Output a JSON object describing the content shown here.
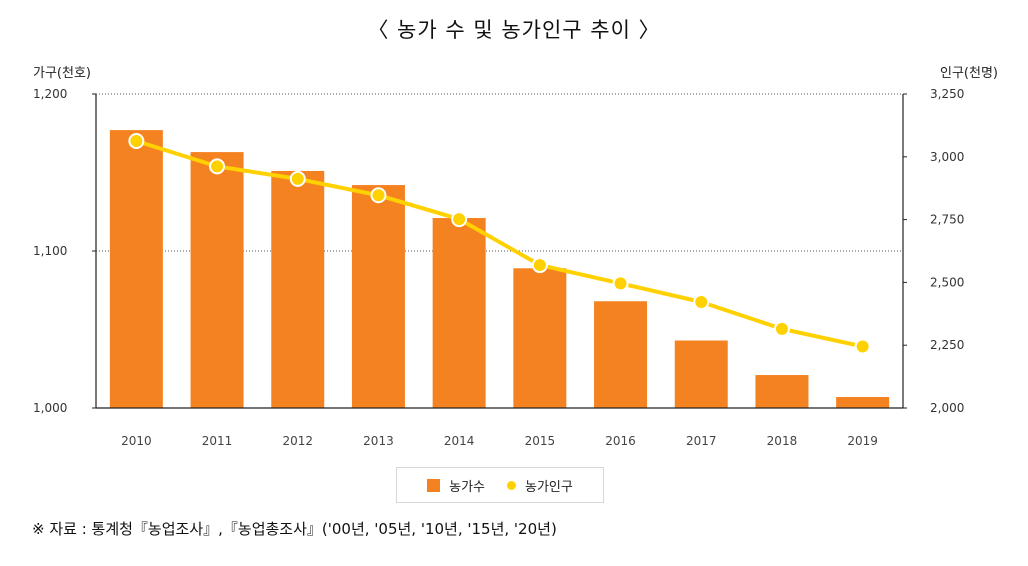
{
  "title": "〈 농가 수 및 농가인구 추이 〉",
  "left_axis_title": "가구(천호)",
  "right_axis_title": "인구(천명)",
  "legend": {
    "bar_label": "농가수",
    "line_label": "농가인구"
  },
  "source": "※ 자료 : 통계청『농업조사』,『농업총조사』('00년, '05년, '10년, '15년, '20년)",
  "colors": {
    "bar": "#f58220",
    "line": "#ffd100",
    "point_stroke": "#ffffff"
  },
  "chart_data": {
    "type": "bar",
    "categories": [
      "2010",
      "2011",
      "2012",
      "2013",
      "2014",
      "2015",
      "2016",
      "2017",
      "2018",
      "2019"
    ],
    "series": [
      {
        "name": "농가수",
        "type": "bar",
        "axis": "left",
        "values": [
          1177,
          1163,
          1151,
          1142,
          1121,
          1089,
          1068,
          1043,
          1021,
          1007
        ]
      },
      {
        "name": "농가인구",
        "type": "line",
        "axis": "right",
        "values": [
          3063,
          2962,
          2912,
          2847,
          2752,
          2569,
          2496,
          2422,
          2315,
          2245
        ]
      }
    ],
    "y_left": {
      "label": "가구(천호)",
      "lim": [
        1000,
        1200
      ],
      "ticks": [
        1000,
        1100,
        1200
      ],
      "tick_labels": [
        "1,000",
        "1,100",
        "1,200"
      ]
    },
    "y_right": {
      "label": "인구(천명)",
      "lim": [
        2000,
        3250
      ],
      "ticks": [
        2000,
        2250,
        2500,
        2750,
        3000,
        3250
      ],
      "tick_labels": [
        "2,000",
        "2,250",
        "2,500",
        "2,750",
        "3,000",
        "3,250"
      ]
    },
    "gridlines": [
      1100,
      1200
    ],
    "legend_position": "bottom"
  }
}
